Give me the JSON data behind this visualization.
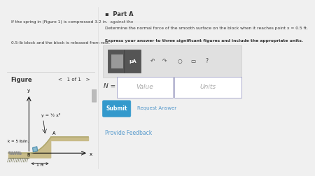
{
  "problem_text_line1": "If the spring in (Figure 1) is compressed 3.2 in.  against the",
  "problem_text_line2": "0.5-lb block and the block is released from rest.",
  "part_a_title": "▪  Part A",
  "question_line1": "Determine the normal force of the smooth surface on the block when it reaches point x = 0.5 ft.",
  "question_line2": "Express your answer to three significant figures and include the appropriate units.",
  "n_label": "N =",
  "value_placeholder": "Value",
  "units_placeholder": "Units",
  "submit_text": "Submit",
  "request_answer_text": "Request Answer",
  "provide_feedback_text": "Provide Feedback",
  "figure_label": "Figure",
  "figure_nav": "<   1 of 1   >",
  "spring_label": "k = 5 lb/in.",
  "curve_label": "y = ½ x²",
  "dim_label": "1 ft",
  "point_B": "B",
  "point_A": "A",
  "axis_x": "x",
  "axis_y": "y",
  "left_panel_bg": "#ddeef8",
  "right_panel_bg": "#ffffff",
  "fig_panel_bg": "#ffffff",
  "fig_label_bg": "#ffffff",
  "overall_bg": "#f0f0f0",
  "surface_color": "#c8bb88",
  "surface_top_color": "#b0a870",
  "block_color": "#88bbd0",
  "block_edge_color": "#4a8aaa",
  "hatch_color": "#777755",
  "text_color": "#333333",
  "link_color": "#5599cc",
  "button_bg": "#3399cc",
  "button_text": "#ffffff",
  "toolbar_bg": "#e0e0e0",
  "toolbar_border": "#cccccc",
  "input_border": "#aaaacc",
  "scrollbar_bg": "#e8e8e8",
  "scrollbar_thumb": "#bbbbbb",
  "icon_dark": "#555555",
  "icon_light": "#888888",
  "spring_coil_color": "#888888",
  "spring_wall_color": "#888888",
  "dim_arrow_color": "#333333"
}
